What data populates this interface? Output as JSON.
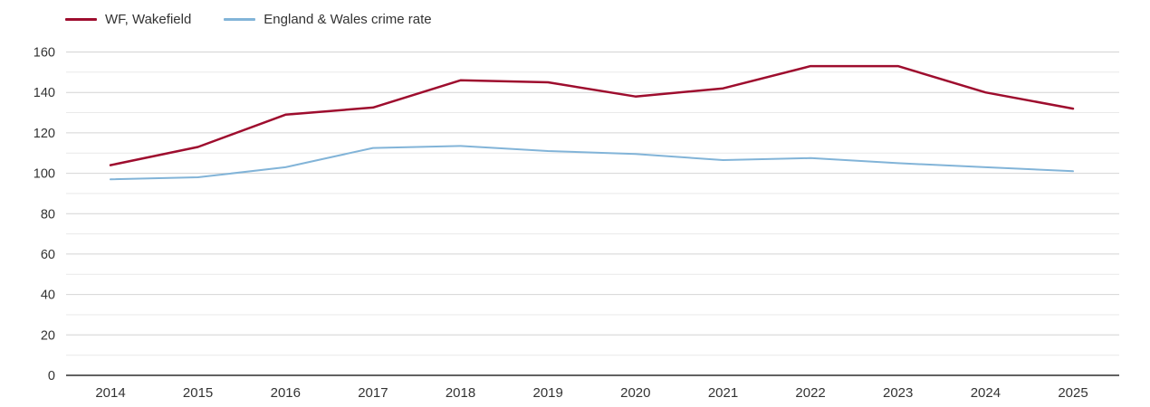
{
  "legend": {
    "items": [
      {
        "label": "WF, Wakefield",
        "color": "#9e0d2e"
      },
      {
        "label": "England & Wales crime rate",
        "color": "#82b4d8"
      }
    ]
  },
  "colors": {
    "wakefield_line": "#9e0d2e",
    "england_wales_line": "#82b4d8",
    "grid_major": "#d4d4d4",
    "grid_minor": "#e9e9e9",
    "axis_line": "#2f2f2f",
    "tick_text": "#333333",
    "background": "#ffffff"
  },
  "chart_data": {
    "type": "line",
    "title": "",
    "xlabel": "",
    "ylabel": "",
    "x": [
      2014,
      2015,
      2016,
      2017,
      2018,
      2019,
      2020,
      2021,
      2022,
      2023,
      2024,
      2025
    ],
    "x_tick_labels": [
      "2014",
      "2015",
      "2016",
      "2017",
      "2018",
      "2019",
      "2020",
      "2021",
      "2022",
      "2023",
      "2024",
      "2025"
    ],
    "series": [
      {
        "name": "WF, Wakefield",
        "color": "#9e0d2e",
        "values": [
          104,
          113,
          129,
          132.5,
          146,
          145,
          138,
          142,
          153,
          153,
          140,
          132
        ]
      },
      {
        "name": "England & Wales crime rate",
        "color": "#82b4d8",
        "values": [
          97,
          98,
          103,
          112.5,
          113.5,
          111,
          109.5,
          106.5,
          107.5,
          105,
          103,
          101
        ]
      }
    ],
    "ylim": [
      0,
      160
    ],
    "ytick_minor_step": 10,
    "ytick_label_step": 20,
    "y_tick_labels": [
      "0",
      "20",
      "40",
      "60",
      "80",
      "100",
      "120",
      "140",
      "160"
    ],
    "grid": true,
    "legend_position": "top-left"
  }
}
